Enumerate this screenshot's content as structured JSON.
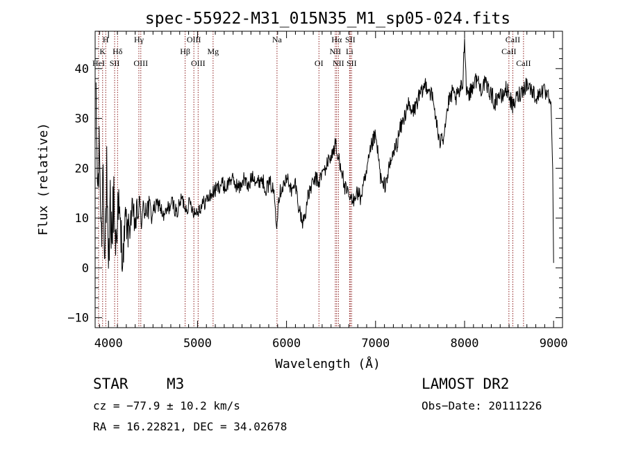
{
  "chart_data": {
    "type": "line",
    "title": "spec-55922-M31_015N35_M1_sp05-024.fits",
    "xlabel": "Wavelength (Å)",
    "ylabel": "Flux (relative)",
    "xlim": [
      3850,
      9100
    ],
    "ylim": [
      -12,
      47.5
    ],
    "x_ticks": [
      4000,
      5000,
      6000,
      7000,
      8000,
      9000
    ],
    "y_ticks": [
      -10,
      0,
      10,
      20,
      30,
      40
    ],
    "grid": false,
    "line_color": "#000000",
    "marker_color": "#8b1a1a",
    "series": [
      {
        "x": [
          3860,
          3880,
          3900,
          3920,
          3940,
          3960,
          3980,
          4000,
          4020,
          4040,
          4060,
          4080,
          4100,
          4130,
          4160,
          4190,
          4220,
          4260,
          4300,
          4340,
          4380,
          4420,
          4470,
          4520,
          4570,
          4620,
          4670,
          4720,
          4770,
          4820,
          4870,
          4920,
          4970,
          5020,
          5070,
          5120,
          5170,
          5220,
          5270,
          5320,
          5370,
          5420,
          5470,
          5520,
          5570,
          5620,
          5670,
          5720,
          5770,
          5820,
          5860,
          5890,
          5910,
          5940,
          5980,
          6020,
          6060,
          6100,
          6140,
          6180,
          6210,
          6240,
          6270,
          6300,
          6330,
          6360,
          6400,
          6440,
          6480,
          6520,
          6550,
          6570,
          6590,
          6620,
          6650,
          6680,
          6710,
          6740,
          6770,
          6800,
          6830,
          6860,
          6890,
          6920,
          6950,
          6980,
          7000,
          7020,
          7050,
          7080,
          7110,
          7140,
          7170,
          7200,
          7240,
          7280,
          7320,
          7360,
          7400,
          7440,
          7480,
          7520,
          7560,
          7600,
          7640,
          7680,
          7720,
          7740,
          7760,
          7790,
          7820,
          7860,
          7900,
          7940,
          7980,
          8000,
          8020,
          8060,
          8100,
          8140,
          8180,
          8220,
          8260,
          8300,
          8340,
          8380,
          8420,
          8460,
          8500,
          8540,
          8580,
          8620,
          8660,
          8700,
          8740,
          8780,
          8820,
          8860,
          8900,
          8940,
          8970,
          8990,
          9000
        ],
        "y": [
          31,
          15,
          24,
          5,
          22,
          2,
          18,
          -5,
          13,
          6,
          15,
          4,
          12,
          8,
          1,
          10,
          7,
          11,
          9,
          12,
          10,
          13,
          11,
          12,
          13,
          10,
          12,
          13,
          11,
          14,
          12,
          13,
          11,
          12,
          13,
          14,
          15,
          16,
          17,
          16,
          18,
          17,
          16,
          18,
          16,
          19,
          17,
          18,
          16,
          17,
          15,
          9,
          14,
          16,
          17,
          18,
          15,
          17,
          12,
          9,
          11,
          14,
          16,
          17,
          18,
          17,
          19,
          20,
          22,
          23,
          25,
          22,
          22,
          20,
          16,
          15,
          14,
          13,
          15,
          15,
          14,
          16,
          18,
          21,
          24,
          26,
          26,
          24,
          19,
          16,
          17,
          19,
          21,
          23,
          25,
          28,
          30,
          33,
          31,
          32,
          34,
          35,
          37,
          36,
          34,
          30,
          24,
          28,
          26,
          30,
          33,
          35,
          34,
          35,
          37,
          47,
          36,
          35,
          37,
          38,
          36,
          37,
          36,
          35,
          33,
          35,
          34,
          36,
          35,
          32,
          34,
          35,
          36,
          37,
          36,
          35,
          34,
          36,
          35,
          34,
          33,
          20,
          1
        ]
      }
    ],
    "line_markers": [
      {
        "label": "H",
        "x": 3969,
        "row": 0
      },
      {
        "label": "K",
        "x": 3934,
        "row": 1
      },
      {
        "label": "Hδ",
        "x": 4102,
        "row": 1
      },
      {
        "label": "HeI",
        "x": 3889,
        "row": 2
      },
      {
        "label": "SII",
        "x": 4069,
        "row": 2
      },
      {
        "label": "Hγ",
        "x": 4341,
        "row": 0
      },
      {
        "label": "OIII",
        "x": 4363,
        "row": 2
      },
      {
        "label": "OIII",
        "x": 4959,
        "row": 0
      },
      {
        "label": "Hβ",
        "x": 4861,
        "row": 1
      },
      {
        "label": "Mg",
        "x": 5175,
        "row": 1
      },
      {
        "label": "OIII",
        "x": 5007,
        "row": 2
      },
      {
        "label": "Na",
        "x": 5893,
        "row": 0
      },
      {
        "label": "OI",
        "x": 6364,
        "row": 2
      },
      {
        "label": "Hα",
        "x": 6563,
        "row": 0
      },
      {
        "label": "NII",
        "x": 6548,
        "row": 1
      },
      {
        "label": "NII",
        "x": 6583,
        "row": 2
      },
      {
        "label": "SII",
        "x": 6716,
        "row": 0
      },
      {
        "label": "Li",
        "x": 6708,
        "row": 1
      },
      {
        "label": "SII",
        "x": 6731,
        "row": 2
      },
      {
        "label": "CaII",
        "x": 8542,
        "row": 0
      },
      {
        "label": "CaII",
        "x": 8498,
        "row": 1
      },
      {
        "label": "CaII",
        "x": 8662,
        "row": 2
      }
    ]
  },
  "info": {
    "object_class": "STAR",
    "subclass": "M3",
    "survey": "LAMOST DR2",
    "cz": "cz = −77.9 ± 10.2 km/s",
    "obs_date": "Obs−Date: 20111226",
    "coords": "RA =  16.22821, DEC =  34.02678"
  }
}
